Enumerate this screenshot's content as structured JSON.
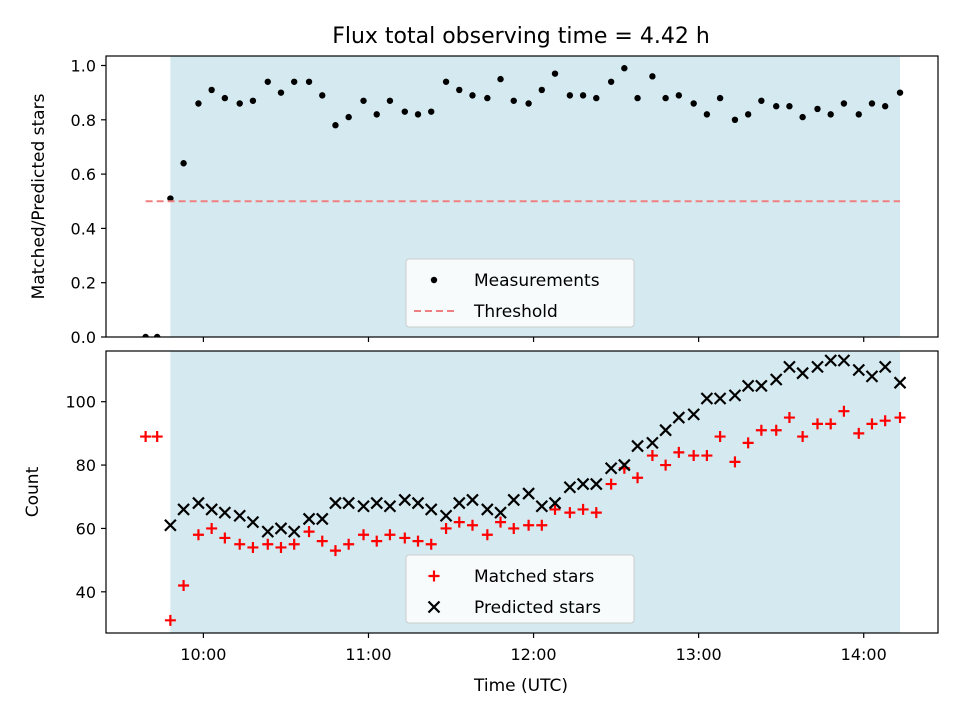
{
  "chart_data": {
    "type": "scatter",
    "title": "Flux total observing time = 4.42 h",
    "xlabel": "Time (UTC)",
    "x_ticks": [
      "10:00",
      "11:00",
      "12:00",
      "13:00",
      "14:00"
    ],
    "x_tick_hours": [
      10,
      11,
      12,
      13,
      14
    ],
    "xlim": [
      9.41,
      14.45
    ],
    "shaded_span": [
      9.8,
      14.22
    ],
    "colors": {
      "shade": "#d4eaf0",
      "measurements": "#000000",
      "threshold": "#f08080",
      "matched": "#ff0000",
      "predicted": "#000000"
    },
    "panels": [
      {
        "ylabel": "Matched/Predicted stars",
        "ylim": [
          0,
          1.035
        ],
        "y_ticks": [
          0.0,
          0.2,
          0.4,
          0.6,
          0.8,
          1.0
        ],
        "y_tick_labels": [
          "0.0",
          "0.2",
          "0.4",
          "0.6",
          "0.8",
          "1.0"
        ],
        "legend_position": "lower center",
        "series": [
          {
            "name": "Measurements",
            "kind": "points",
            "x": [
              9.65,
              9.72,
              9.8,
              9.88,
              9.97,
              10.05,
              10.13,
              10.22,
              10.3,
              10.39,
              10.47,
              10.55,
              10.64,
              10.72,
              10.8,
              10.88,
              10.97,
              11.05,
              11.13,
              11.22,
              11.3,
              11.38,
              11.47,
              11.55,
              11.63,
              11.72,
              11.8,
              11.88,
              11.97,
              12.05,
              12.13,
              12.22,
              12.3,
              12.38,
              12.47,
              12.55,
              12.63,
              12.72,
              12.8,
              12.88,
              12.97,
              13.05,
              13.13,
              13.22,
              13.3,
              13.38,
              13.47,
              13.55,
              13.63,
              13.72,
              13.8,
              13.88,
              13.97,
              14.05,
              14.13,
              14.22
            ],
            "y": [
              0.0,
              0.0,
              0.51,
              0.64,
              0.86,
              0.91,
              0.88,
              0.86,
              0.87,
              0.94,
              0.9,
              0.94,
              0.94,
              0.89,
              0.78,
              0.81,
              0.87,
              0.82,
              0.87,
              0.83,
              0.82,
              0.83,
              0.94,
              0.91,
              0.89,
              0.88,
              0.95,
              0.87,
              0.86,
              0.91,
              0.97,
              0.89,
              0.89,
              0.88,
              0.94,
              0.99,
              0.88,
              0.96,
              0.88,
              0.89,
              0.86,
              0.82,
              0.88,
              0.8,
              0.82,
              0.87,
              0.85,
              0.85,
              0.81,
              0.84,
              0.82,
              0.86,
              0.82,
              0.86,
              0.85,
              0.9
            ]
          },
          {
            "name": "Threshold",
            "kind": "hline",
            "y": 0.5,
            "x_range": [
              9.65,
              14.22
            ]
          }
        ]
      },
      {
        "ylabel": "Count",
        "ylim": [
          27,
          116
        ],
        "y_ticks": [
          40,
          60,
          80,
          100
        ],
        "y_tick_labels": [
          "40",
          "60",
          "80",
          "100"
        ],
        "legend_position": "lower center",
        "series": [
          {
            "name": "Matched stars",
            "marker": "plus",
            "x": [
              9.65,
              9.72,
              9.8,
              9.88,
              9.97,
              10.05,
              10.13,
              10.22,
              10.3,
              10.39,
              10.47,
              10.55,
              10.64,
              10.72,
              10.8,
              10.88,
              10.97,
              11.05,
              11.13,
              11.22,
              11.3,
              11.38,
              11.47,
              11.55,
              11.63,
              11.72,
              11.8,
              11.88,
              11.97,
              12.05,
              12.13,
              12.22,
              12.3,
              12.38,
              12.47,
              12.55,
              12.63,
              12.72,
              12.8,
              12.88,
              12.97,
              13.05,
              13.13,
              13.22,
              13.3,
              13.38,
              13.47,
              13.55,
              13.63,
              13.72,
              13.8,
              13.88,
              13.97,
              14.05,
              14.13,
              14.22
            ],
            "y": [
              89,
              89,
              31,
              42,
              58,
              60,
              57,
              55,
              54,
              55,
              54,
              55,
              59,
              56,
              53,
              55,
              58,
              56,
              58,
              57,
              56,
              55,
              60,
              62,
              61,
              58,
              62,
              60,
              61,
              61,
              66,
              65,
              66,
              65,
              74,
              79,
              76,
              83,
              80,
              84,
              83,
              83,
              89,
              81,
              87,
              91,
              91,
              95,
              89,
              93,
              93,
              97,
              90,
              93,
              94,
              95
            ]
          },
          {
            "name": "Predicted stars",
            "marker": "x",
            "x": [
              9.8,
              9.88,
              9.97,
              10.05,
              10.13,
              10.22,
              10.3,
              10.39,
              10.47,
              10.55,
              10.64,
              10.72,
              10.8,
              10.88,
              10.97,
              11.05,
              11.13,
              11.22,
              11.3,
              11.38,
              11.47,
              11.55,
              11.63,
              11.72,
              11.8,
              11.88,
              11.97,
              12.05,
              12.13,
              12.22,
              12.3,
              12.38,
              12.47,
              12.55,
              12.63,
              12.72,
              12.8,
              12.88,
              12.97,
              13.05,
              13.13,
              13.22,
              13.3,
              13.38,
              13.47,
              13.55,
              13.63,
              13.72,
              13.8,
              13.88,
              13.97,
              14.05,
              14.13,
              14.22
            ],
            "y": [
              61,
              66,
              68,
              66,
              65,
              64,
              62,
              59,
              60,
              59,
              63,
              63,
              68,
              68,
              67,
              68,
              67,
              69,
              68,
              66,
              64,
              68,
              69,
              66,
              65,
              69,
              71,
              67,
              68,
              73,
              74,
              74,
              79,
              80,
              86,
              87,
              91,
              95,
              96,
              101,
              101,
              102,
              105,
              105,
              107,
              111,
              109,
              111,
              113,
              113,
              110,
              108,
              111,
              106
            ]
          }
        ]
      }
    ]
  }
}
